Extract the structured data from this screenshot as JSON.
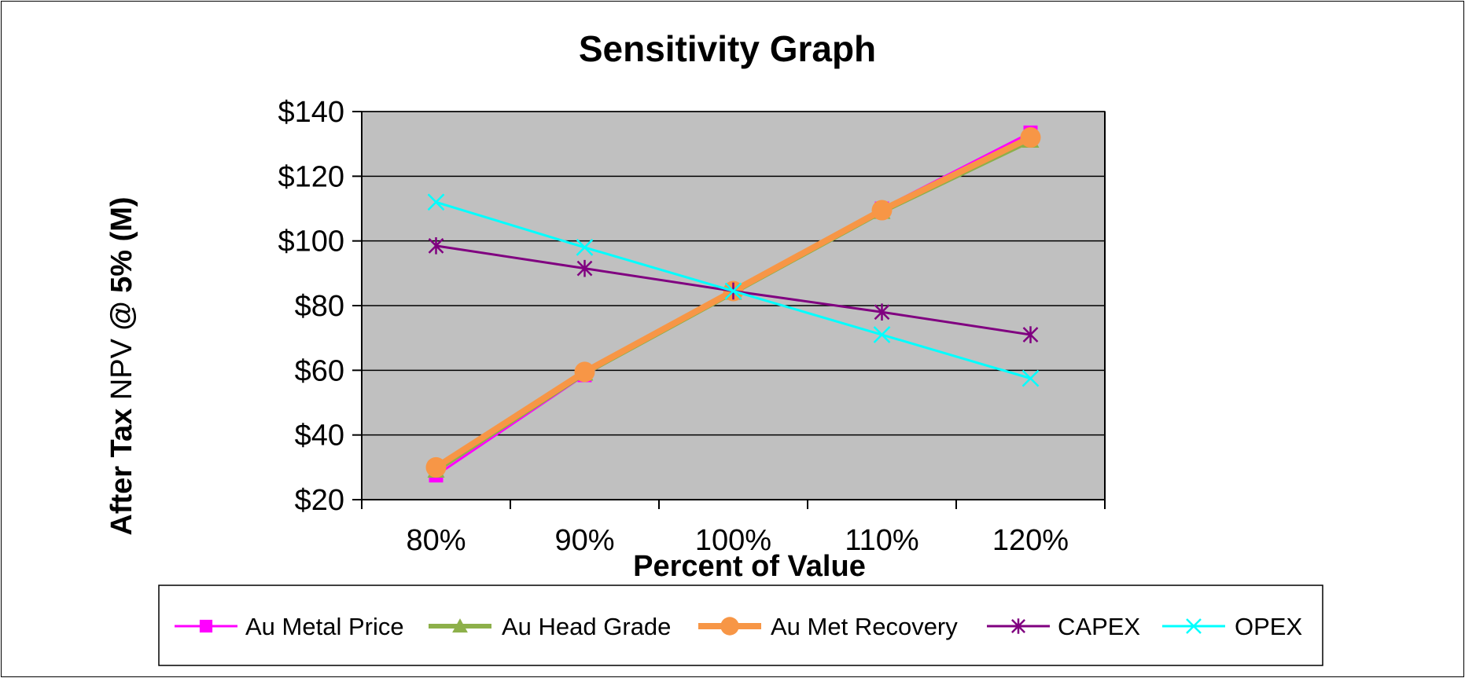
{
  "chart_data": {
    "type": "line",
    "title": "Sensitivity Graph",
    "xlabel": "Percent of Value",
    "ylabel": {
      "part1": "After Tax",
      "part2": " NPV ",
      "part3": "@ 5% (M)"
    },
    "x": [
      "80%",
      "90%",
      "100%",
      "110%",
      "120%"
    ],
    "y_ticks": [
      "$20",
      "$40",
      "$60",
      "$80",
      "$100",
      "$120",
      "$140"
    ],
    "ylim": [
      20,
      140
    ],
    "grid": true,
    "plot_background": "#C0C0C0",
    "legend_position": "bottom",
    "series": [
      {
        "name": "Au Metal Price",
        "color": "#FF00FF",
        "marker": "square",
        "width": 3,
        "values": [
          27.5,
          58.5,
          84.5,
          110,
          133.5
        ]
      },
      {
        "name": "Au Head Grade",
        "color": "#8DB04A",
        "marker": "triangle",
        "width": 6,
        "values": [
          29,
          59,
          84,
          109,
          131
        ]
      },
      {
        "name": "Au Met Recovery",
        "color": "#F79646",
        "marker": "circle",
        "width": 8,
        "values": [
          30,
          59.5,
          84.5,
          109.5,
          132
        ]
      },
      {
        "name": "CAPEX",
        "color": "#800080",
        "marker": "asterisk",
        "width": 3,
        "values": [
          98.5,
          91.5,
          84.5,
          78,
          71
        ]
      },
      {
        "name": "OPEX",
        "color": "#00FFFF",
        "marker": "x",
        "width": 3,
        "values": [
          112,
          98,
          84.5,
          71,
          57.5
        ]
      }
    ]
  }
}
